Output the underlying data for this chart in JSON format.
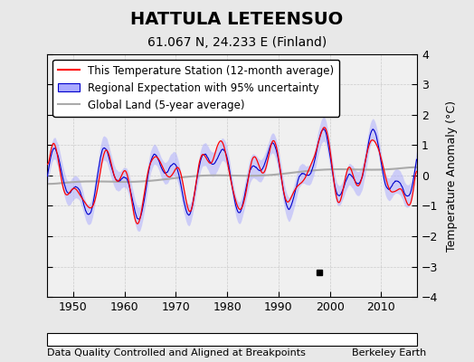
{
  "title": "HATTULA LETEENSUO",
  "subtitle": "61.067 N, 24.233 E (Finland)",
  "xlabel_note": "Data Quality Controlled and Aligned at Breakpoints",
  "credit": "Berkeley Earth",
  "ylabel": "Temperature Anomaly (°C)",
  "xlim": [
    1945,
    2017
  ],
  "ylim": [
    -4,
    4
  ],
  "yticks": [
    -4,
    -3,
    -2,
    -1,
    0,
    1,
    2,
    3,
    4
  ],
  "xticks": [
    1950,
    1960,
    1970,
    1980,
    1990,
    2000,
    2010
  ],
  "bg_color": "#e8e8e8",
  "plot_bg_color": "#f0f0f0",
  "empirical_break_x": 1998,
  "empirical_break_y": -3.2,
  "title_fontsize": 14,
  "subtitle_fontsize": 10,
  "legend_fontsize": 8.5,
  "tick_fontsize": 9,
  "note_fontsize": 8
}
